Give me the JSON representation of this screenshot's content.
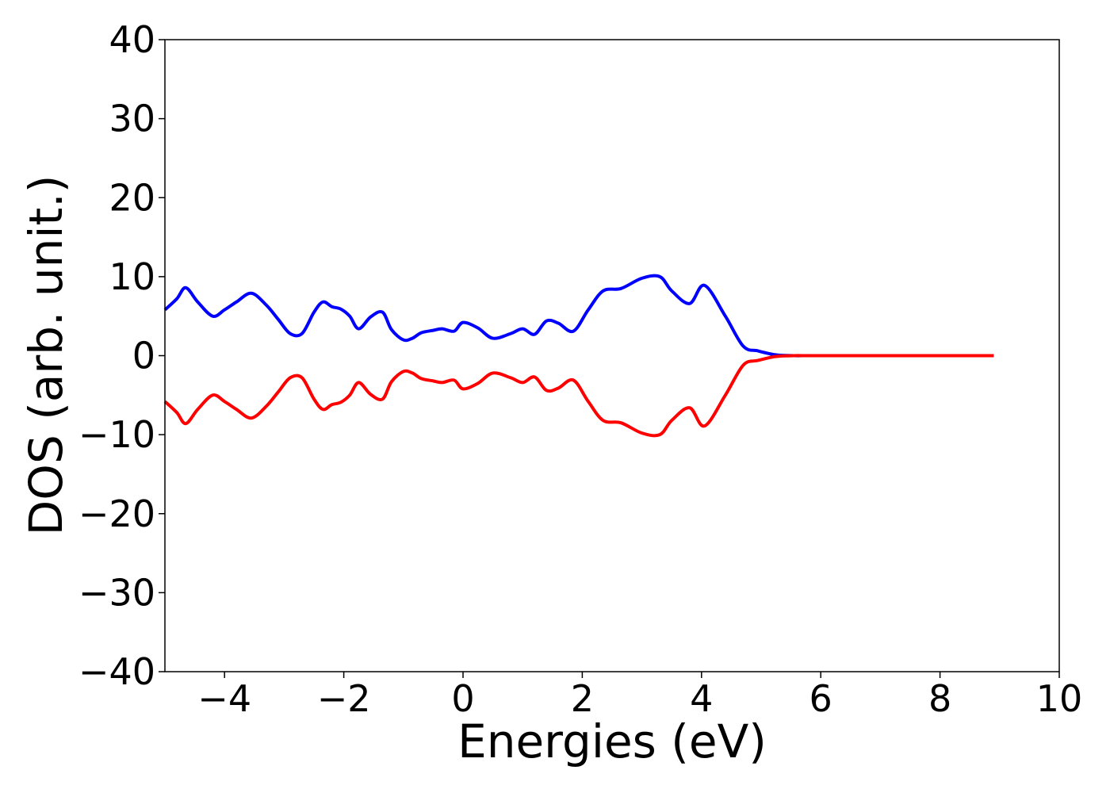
{
  "chart_data": {
    "type": "line",
    "title": "",
    "xlabel": "Energies (eV)",
    "ylabel": "DOS (arb. unit.)",
    "xlim": [
      -5,
      10
    ],
    "ylim": [
      -40,
      40
    ],
    "xticks": [
      -4,
      -2,
      0,
      2,
      4,
      6,
      8,
      10
    ],
    "yticks": [
      -40,
      -30,
      -20,
      -10,
      0,
      10,
      20,
      30,
      40
    ],
    "xtick_labels": [
      "−4",
      "−2",
      "0",
      "2",
      "4",
      "6",
      "8",
      "10"
    ],
    "ytick_labels": [
      "−40",
      "−30",
      "−20",
      "−10",
      "0",
      "10",
      "20",
      "30",
      "40"
    ],
    "grid": false,
    "legend": false,
    "x": [
      -5.0,
      -4.8,
      -4.65,
      -4.45,
      -4.2,
      -4.0,
      -3.8,
      -3.55,
      -3.3,
      -3.1,
      -2.9,
      -2.7,
      -2.5,
      -2.35,
      -2.2,
      -2.05,
      -1.9,
      -1.75,
      -1.55,
      -1.35,
      -1.2,
      -1.0,
      -0.85,
      -0.7,
      -0.5,
      -0.35,
      -0.15,
      0.0,
      0.25,
      0.5,
      0.8,
      1.0,
      1.2,
      1.4,
      1.6,
      1.85,
      2.1,
      2.35,
      2.65,
      3.0,
      3.3,
      3.5,
      3.8,
      4.05,
      4.4,
      4.7,
      4.95,
      5.25,
      5.55,
      5.75,
      5.95,
      6.15,
      6.3,
      6.5,
      6.7,
      7.0,
      7.2,
      7.5,
      8.0,
      8.5,
      8.9
    ],
    "series": [
      {
        "color": "#0000ff",
        "values": [
          5.8,
          7.2,
          8.6,
          6.8,
          5.0,
          5.8,
          6.8,
          7.9,
          6.4,
          4.6,
          2.8,
          2.8,
          5.5,
          6.8,
          6.2,
          5.9,
          5.0,
          3.4,
          4.9,
          5.5,
          3.3,
          2.0,
          2.2,
          2.9,
          3.2,
          3.4,
          3.1,
          4.2,
          3.5,
          2.2,
          2.8,
          3.4,
          2.7,
          4.4,
          4.1,
          3.1,
          5.8,
          8.2,
          8.5,
          9.8,
          10.0,
          8.2,
          6.6,
          8.9,
          5.0,
          1.2,
          0.6,
          0.1,
          0.0,
          0.0,
          0.0,
          0.0,
          0.0,
          0.0,
          0.0,
          0.0,
          0.0,
          0.0,
          0.0,
          0.0,
          0.0
        ]
      },
      {
        "color": "#ff0000",
        "values": [
          -5.8,
          -7.2,
          -8.6,
          -6.8,
          -5.0,
          -5.8,
          -6.8,
          -7.9,
          -6.4,
          -4.6,
          -2.8,
          -2.8,
          -5.5,
          -6.8,
          -6.2,
          -5.9,
          -5.0,
          -3.4,
          -4.9,
          -5.5,
          -3.3,
          -2.0,
          -2.2,
          -2.9,
          -3.2,
          -3.4,
          -3.1,
          -4.2,
          -3.5,
          -2.2,
          -2.8,
          -3.4,
          -2.7,
          -4.4,
          -4.1,
          -3.1,
          -5.8,
          -8.2,
          -8.5,
          -9.8,
          -10.0,
          -8.2,
          -6.6,
          -8.9,
          -5.0,
          -1.2,
          -0.6,
          -0.1,
          0.0,
          0.0,
          0.0,
          0.0,
          0.0,
          0.0,
          0.0,
          0.0,
          0.0,
          0.0,
          0.0,
          0.0,
          0.0
        ]
      }
    ]
  }
}
